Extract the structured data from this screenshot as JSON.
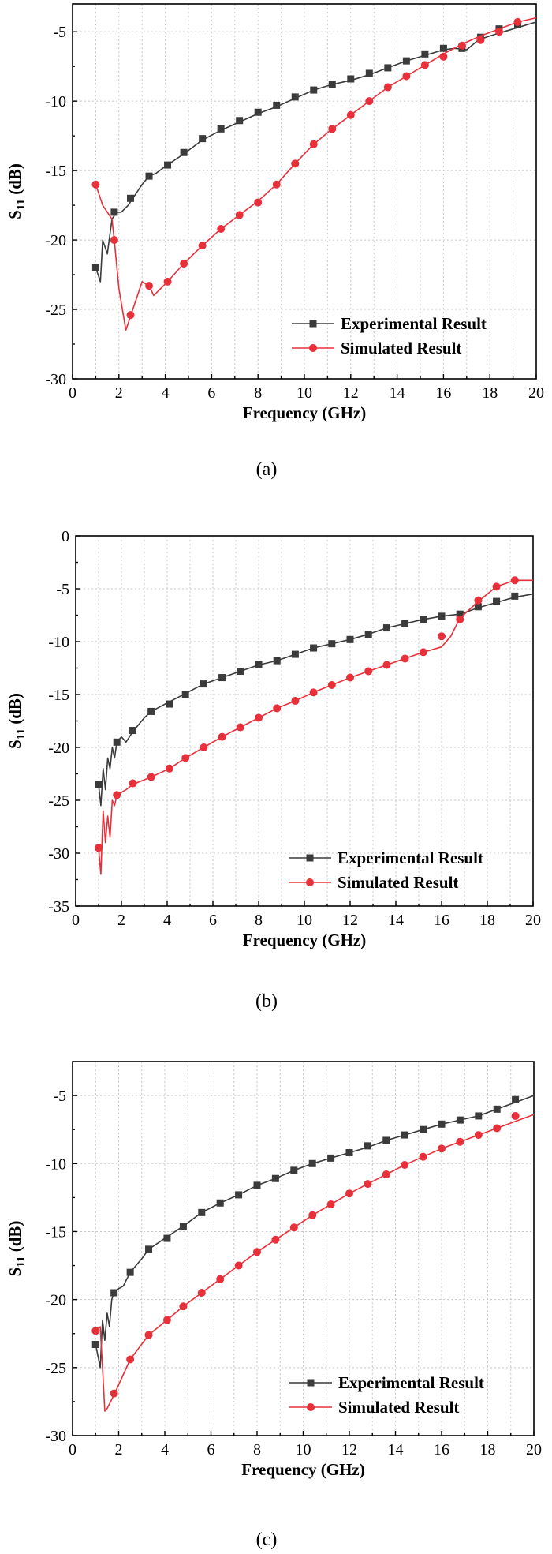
{
  "figure": {
    "panels": [
      {
        "caption": "(a)"
      },
      {
        "caption": "(b)"
      },
      {
        "caption": "(c)"
      }
    ]
  },
  "colors": {
    "experimental": "#3b3b3b",
    "simulated": "#e8303a",
    "grid": "#c8c8c8"
  },
  "chart_data": [
    {
      "type": "line",
      "panel": "(a)",
      "xlabel": "Frequency (GHz)",
      "ylabel": "S11 (dB)",
      "xlim": [
        0,
        20
      ],
      "ylim": [
        -30,
        -3
      ],
      "xticks": [
        "0",
        "2",
        "4",
        "6",
        "8",
        "10",
        "12",
        "14",
        "16",
        "18",
        "20"
      ],
      "yticks": [
        "-30",
        "-25",
        "-20",
        "-15",
        "-10",
        "-5"
      ],
      "grid": true,
      "legend_position": "bottom-right",
      "series": [
        {
          "name": "Experimental Result",
          "marker": "square",
          "x": [
            1.0,
            1.2,
            1.3,
            1.5,
            1.7,
            1.9,
            2.1,
            2.4,
            2.6,
            3.0,
            3.3,
            3.6,
            4.0,
            4.8,
            5.6,
            6.4,
            7.2,
            8.0,
            8.8,
            9.6,
            10.4,
            11.2,
            12.0,
            12.8,
            13.6,
            14.4,
            15.2,
            16.0,
            16.5,
            17.0,
            17.5,
            18.0,
            19.0,
            20.0
          ],
          "values": [
            -22.0,
            -23.0,
            -20.0,
            -21.0,
            -18.5,
            -18.0,
            -18.0,
            -17.5,
            -17.0,
            -16.0,
            -15.4,
            -15.2,
            -14.7,
            -13.8,
            -12.8,
            -12.1,
            -11.5,
            -10.9,
            -10.4,
            -9.8,
            -9.2,
            -8.8,
            -8.5,
            -8.1,
            -7.6,
            -7.1,
            -6.7,
            -6.3,
            -6.2,
            -6.3,
            -5.6,
            -5.3,
            -4.8,
            -4.3
          ],
          "marker_x": [
            1.0,
            1.8,
            2.5,
            3.3,
            4.1,
            4.8,
            5.6,
            6.4,
            7.2,
            8.0,
            8.8,
            9.6,
            10.4,
            11.2,
            12.0,
            12.8,
            13.6,
            14.4,
            15.2,
            16.0,
            16.8,
            17.6,
            18.4,
            19.2
          ],
          "marker_values": [
            -22.0,
            -18.0,
            -17.0,
            -15.4,
            -14.6,
            -13.7,
            -12.7,
            -12.0,
            -11.4,
            -10.8,
            -10.3,
            -9.7,
            -9.2,
            -8.8,
            -8.4,
            -8.0,
            -7.6,
            -7.1,
            -6.6,
            -6.2,
            -6.2,
            -5.4,
            -4.8,
            -4.5
          ]
        },
        {
          "name": "Simulated Result",
          "marker": "circle",
          "x": [
            1.0,
            1.3,
            1.7,
            1.8,
            2.0,
            2.3,
            2.5,
            3.0,
            3.3,
            3.5,
            4.1,
            4.8,
            5.6,
            6.4,
            7.2,
            8.0,
            8.8,
            9.6,
            10.4,
            11.2,
            12.0,
            12.8,
            13.6,
            14.4,
            15.2,
            16.0,
            16.8,
            17.6,
            18.4,
            19.2,
            20.0
          ],
          "values": [
            -16.0,
            -17.5,
            -18.5,
            -20.0,
            -23.5,
            -26.5,
            -25.5,
            -23.0,
            -23.3,
            -24.0,
            -23.0,
            -21.7,
            -20.4,
            -19.2,
            -18.2,
            -17.2,
            -16.0,
            -14.5,
            -13.1,
            -12.0,
            -11.0,
            -10.0,
            -9.0,
            -8.2,
            -7.4,
            -6.6,
            -5.9,
            -5.3,
            -4.8,
            -4.3,
            -4.0
          ],
          "marker_x": [
            1.0,
            1.8,
            2.5,
            3.3,
            4.1,
            4.8,
            5.6,
            6.4,
            7.2,
            8.0,
            8.8,
            9.6,
            10.4,
            11.2,
            12.0,
            12.8,
            13.6,
            14.4,
            15.2,
            16.0,
            16.8,
            17.6,
            18.4,
            19.2
          ],
          "marker_values": [
            -16.0,
            -20.0,
            -25.4,
            -23.3,
            -23.0,
            -21.7,
            -20.4,
            -19.2,
            -18.2,
            -17.3,
            -16.0,
            -14.5,
            -13.1,
            -12.0,
            -11.0,
            -10.0,
            -9.0,
            -8.2,
            -7.4,
            -6.8,
            -6.0,
            -5.6,
            -5.0,
            -4.3
          ]
        }
      ]
    },
    {
      "type": "line",
      "panel": "(b)",
      "xlabel": "Frequency (GHz)",
      "ylabel": "S11 (dB)",
      "xlim": [
        0,
        20
      ],
      "ylim": [
        -35,
        0
      ],
      "xticks": [
        "0",
        "2",
        "4",
        "6",
        "8",
        "10",
        "12",
        "14",
        "16",
        "18",
        "20"
      ],
      "yticks": [
        "-35",
        "-30",
        "-25",
        "-20",
        "-15",
        "-10",
        "-5",
        "0"
      ],
      "grid": true,
      "legend_position": "bottom-right",
      "series": [
        {
          "name": "Experimental Result",
          "marker": "square",
          "x": [
            1.0,
            1.1,
            1.2,
            1.3,
            1.4,
            1.5,
            1.6,
            1.7,
            1.8,
            2.0,
            2.2,
            2.5,
            3.0,
            3.3,
            4.0,
            4.8,
            5.6,
            6.4,
            7.2,
            8.0,
            8.8,
            9.6,
            10.4,
            11.2,
            12.0,
            12.8,
            13.6,
            14.4,
            15.2,
            16.0,
            16.8,
            17.6,
            18.4,
            19.2,
            20.0
          ],
          "values": [
            -23.5,
            -25.5,
            -22.0,
            -24.0,
            -21.0,
            -22.0,
            -20.0,
            -21.0,
            -19.5,
            -19.0,
            -19.5,
            -18.5,
            -17.2,
            -16.6,
            -15.8,
            -14.9,
            -14.0,
            -13.4,
            -12.8,
            -12.2,
            -11.8,
            -11.2,
            -10.6,
            -10.2,
            -9.8,
            -9.3,
            -8.7,
            -8.3,
            -7.9,
            -7.6,
            -7.4,
            -6.8,
            -6.3,
            -5.8,
            -5.5
          ],
          "marker_x": [
            1.0,
            1.8,
            2.5,
            3.3,
            4.1,
            4.8,
            5.6,
            6.4,
            7.2,
            8.0,
            8.8,
            9.6,
            10.4,
            11.2,
            12.0,
            12.8,
            13.6,
            14.4,
            15.2,
            16.0,
            16.8,
            17.6,
            18.4,
            19.2
          ],
          "marker_values": [
            -23.5,
            -19.5,
            -18.4,
            -16.6,
            -15.9,
            -15.0,
            -14.0,
            -13.4,
            -12.8,
            -12.2,
            -11.8,
            -11.2,
            -10.6,
            -10.2,
            -9.8,
            -9.3,
            -8.7,
            -8.3,
            -7.9,
            -7.6,
            -7.4,
            -6.7,
            -6.2,
            -5.7
          ]
        },
        {
          "name": "Simulated Result",
          "marker": "circle",
          "x": [
            1.0,
            1.1,
            1.2,
            1.3,
            1.4,
            1.5,
            1.6,
            1.7,
            1.8,
            2.2,
            2.5,
            3.3,
            4.1,
            4.8,
            5.6,
            6.4,
            7.2,
            8.0,
            8.8,
            9.6,
            10.4,
            11.2,
            12.0,
            12.8,
            13.6,
            14.4,
            15.2,
            16.0,
            16.4,
            16.8,
            17.6,
            18.4,
            19.2,
            20.0
          ],
          "values": [
            -29.5,
            -32.0,
            -26.0,
            -29.0,
            -26.5,
            -28.5,
            -25.0,
            -25.5,
            -24.5,
            -24.0,
            -23.5,
            -22.8,
            -22.0,
            -21.0,
            -20.0,
            -19.0,
            -18.1,
            -17.2,
            -16.3,
            -15.6,
            -14.8,
            -14.1,
            -13.4,
            -12.8,
            -12.2,
            -11.6,
            -11.0,
            -10.5,
            -9.5,
            -7.8,
            -6.2,
            -4.8,
            -4.2,
            -4.2
          ],
          "marker_x": [
            1.0,
            1.8,
            2.5,
            3.3,
            4.1,
            4.8,
            5.6,
            6.4,
            7.2,
            8.0,
            8.8,
            9.6,
            10.4,
            11.2,
            12.0,
            12.8,
            13.6,
            14.4,
            15.2,
            16.0,
            16.8,
            17.6,
            18.4,
            19.2
          ],
          "marker_values": [
            -29.5,
            -24.5,
            -23.4,
            -22.8,
            -22.0,
            -21.0,
            -20.0,
            -19.0,
            -18.1,
            -17.2,
            -16.3,
            -15.6,
            -14.8,
            -14.1,
            -13.4,
            -12.8,
            -12.2,
            -11.6,
            -11.0,
            -9.5,
            -7.9,
            -6.1,
            -4.8,
            -4.2
          ]
        }
      ]
    },
    {
      "type": "line",
      "panel": "(c)",
      "xlabel": "Frequency (GHz)",
      "ylabel": "S11 (dB)",
      "xlim": [
        0,
        20
      ],
      "ylim": [
        -30,
        -2.5
      ],
      "xticks": [
        "0",
        "2",
        "4",
        "6",
        "8",
        "10",
        "12",
        "14",
        "16",
        "18",
        "20"
      ],
      "yticks": [
        "-30",
        "-25",
        "-20",
        "-15",
        "-10",
        "-5"
      ],
      "grid": true,
      "legend_position": "bottom-right",
      "series": [
        {
          "name": "Experimental Result",
          "marker": "square",
          "x": [
            1.0,
            1.2,
            1.3,
            1.4,
            1.5,
            1.6,
            1.7,
            1.8,
            2.0,
            2.2,
            2.5,
            3.0,
            3.3,
            4.0,
            4.8,
            5.6,
            6.4,
            7.2,
            8.0,
            8.8,
            9.6,
            10.4,
            11.2,
            12.0,
            12.8,
            13.6,
            14.4,
            15.2,
            16.0,
            16.8,
            17.6,
            18.4,
            19.2,
            20.0
          ],
          "values": [
            -23.3,
            -25.0,
            -21.5,
            -23.0,
            -21.0,
            -22.0,
            -20.0,
            -19.5,
            -19.2,
            -19.0,
            -18.0,
            -17.0,
            -16.3,
            -15.5,
            -14.6,
            -13.6,
            -12.9,
            -12.3,
            -11.6,
            -11.1,
            -10.5,
            -10.0,
            -9.6,
            -9.2,
            -8.8,
            -8.3,
            -7.9,
            -7.5,
            -7.1,
            -6.8,
            -6.5,
            -6.0,
            -5.5,
            -5.0
          ],
          "marker_x": [
            1.0,
            1.8,
            2.5,
            3.3,
            4.1,
            4.8,
            5.6,
            6.4,
            7.2,
            8.0,
            8.8,
            9.6,
            10.4,
            11.2,
            12.0,
            12.8,
            13.6,
            14.4,
            15.2,
            16.0,
            16.8,
            17.6,
            18.4,
            19.2
          ],
          "marker_values": [
            -23.3,
            -19.5,
            -18.0,
            -16.3,
            -15.5,
            -14.6,
            -13.6,
            -12.9,
            -12.3,
            -11.6,
            -11.1,
            -10.5,
            -10.0,
            -9.6,
            -9.2,
            -8.7,
            -8.3,
            -7.9,
            -7.5,
            -7.1,
            -6.8,
            -6.5,
            -6.0,
            -5.3
          ]
        },
        {
          "name": "Simulated Result",
          "marker": "circle",
          "x": [
            1.0,
            1.2,
            1.3,
            1.4,
            1.5,
            1.8,
            2.5,
            3.3,
            4.1,
            4.8,
            5.6,
            6.4,
            7.2,
            8.0,
            8.8,
            9.6,
            10.4,
            11.2,
            12.0,
            12.8,
            13.6,
            14.4,
            15.2,
            16.0,
            16.8,
            17.6,
            18.4,
            19.2,
            20.0
          ],
          "values": [
            -22.3,
            -22.0,
            -25.0,
            -28.2,
            -28.0,
            -27.0,
            -24.4,
            -22.6,
            -21.5,
            -20.5,
            -19.5,
            -18.5,
            -17.5,
            -16.5,
            -15.6,
            -14.7,
            -13.8,
            -13.0,
            -12.2,
            -11.5,
            -10.8,
            -10.1,
            -9.5,
            -8.9,
            -8.4,
            -7.9,
            -7.4,
            -6.9,
            -6.4
          ],
          "marker_x": [
            1.0,
            1.8,
            2.5,
            3.3,
            4.1,
            4.8,
            5.6,
            6.4,
            7.2,
            8.0,
            8.8,
            9.6,
            10.4,
            11.2,
            12.0,
            12.8,
            13.6,
            14.4,
            15.2,
            16.0,
            16.8,
            17.6,
            18.4,
            19.2
          ],
          "marker_values": [
            -22.3,
            -26.9,
            -24.4,
            -22.6,
            -21.5,
            -20.5,
            -19.5,
            -18.5,
            -17.5,
            -16.5,
            -15.6,
            -14.7,
            -13.8,
            -13.0,
            -12.2,
            -11.5,
            -10.8,
            -10.1,
            -9.5,
            -8.9,
            -8.4,
            -7.9,
            -7.4,
            -6.5
          ]
        }
      ]
    }
  ]
}
